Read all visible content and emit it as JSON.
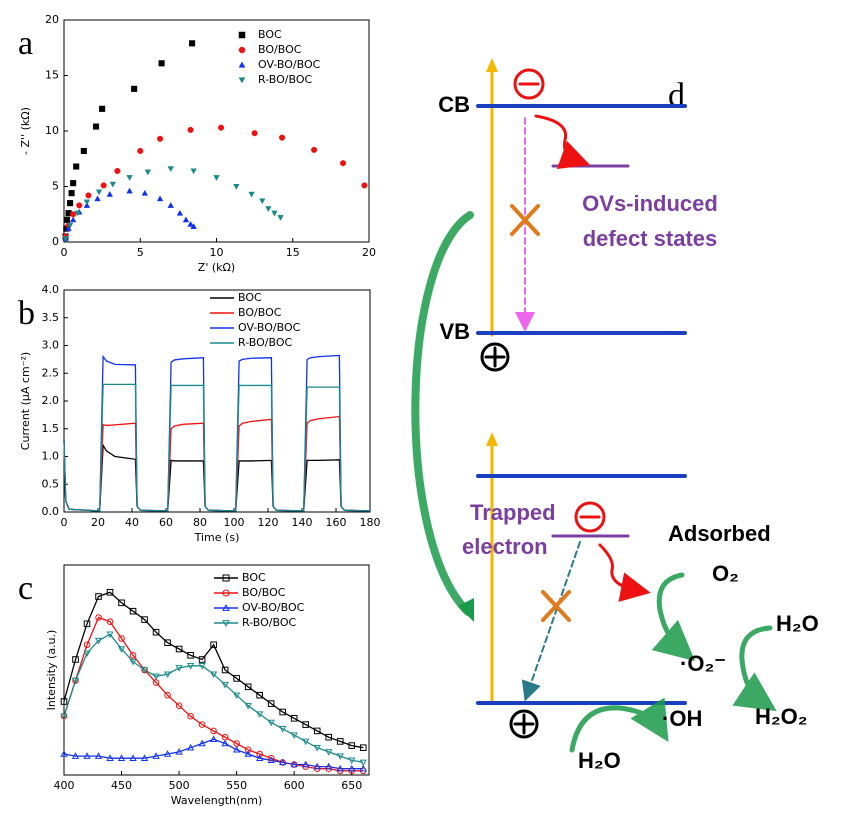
{
  "chart_data": [
    {
      "type": "scatter",
      "panel": "a",
      "x_label": "Z' (kΩ)",
      "y_label": "- Z'' (kΩ)",
      "xlim": [
        0,
        20
      ],
      "xticks": [
        0,
        5,
        10,
        15,
        20
      ],
      "ylim": [
        0,
        20
      ],
      "yticks": [
        0,
        5,
        10,
        15,
        20
      ],
      "series": [
        {
          "name": "BOC",
          "color": "#000000",
          "marker": "square",
          "x": [
            0.1,
            0.15,
            0.2,
            0.3,
            0.4,
            0.5,
            0.6,
            0.8,
            1.3,
            2.1,
            2.5,
            4.6,
            6.4,
            8.4
          ],
          "y": [
            0.5,
            1.2,
            2.0,
            2.6,
            3.5,
            4.4,
            5.3,
            6.8,
            8.2,
            10.4,
            12.0,
            13.8,
            16.1,
            17.9
          ]
        },
        {
          "name": "BO/BOC",
          "color": "#ee1111",
          "marker": "circle",
          "x": [
            0.1,
            0.3,
            0.6,
            1.0,
            1.6,
            2.6,
            3.5,
            5.0,
            6.3,
            8.3,
            10.3,
            12.5,
            14.3,
            16.4,
            18.3,
            19.7
          ],
          "y": [
            0.5,
            1.5,
            2.5,
            3.3,
            4.2,
            5.1,
            6.4,
            8.2,
            9.3,
            10.1,
            10.3,
            9.8,
            9.4,
            8.3,
            7.1,
            5.1
          ]
        },
        {
          "name": "OV-BO/BOC",
          "color": "#1133ee",
          "marker": "triangle",
          "x": [
            0.1,
            0.3,
            0.6,
            1.0,
            1.5,
            2.2,
            3.0,
            4.3,
            5.3,
            6.3,
            7.0,
            7.6,
            8.0,
            8.3,
            8.5
          ],
          "y": [
            0.3,
            1.2,
            2.0,
            2.7,
            3.3,
            3.9,
            4.3,
            4.6,
            4.4,
            3.9,
            3.3,
            2.6,
            2.0,
            1.6,
            1.4
          ]
        },
        {
          "name": "R-BO/BOC",
          "color": "#1a8a8a",
          "marker": "triangle-down",
          "x": [
            0.1,
            0.4,
            0.9,
            1.5,
            2.3,
            3.2,
            4.3,
            5.5,
            7.0,
            8.5,
            10.0,
            11.3,
            12.3,
            13.0,
            13.4,
            13.8,
            14.2
          ],
          "y": [
            0.3,
            1.5,
            2.6,
            3.6,
            4.5,
            5.2,
            5.8,
            6.3,
            6.6,
            6.4,
            5.8,
            5.0,
            4.3,
            3.7,
            3.0,
            2.6,
            2.2
          ]
        }
      ]
    },
    {
      "type": "line",
      "panel": "b",
      "x_label": "Time (s)",
      "y_label": "Current (μA cm⁻²)",
      "xlim": [
        0,
        180
      ],
      "xticks": [
        0,
        20,
        40,
        60,
        80,
        100,
        120,
        140,
        160,
        180
      ],
      "ylim": [
        0,
        4
      ],
      "yticks": [
        {
          "value": 0,
          "label": "0.0"
        },
        0.5,
        {
          "value": 1,
          "label": "1.0"
        },
        1.5,
        {
          "value": 2,
          "label": "2.0"
        },
        2.5,
        {
          "value": 3,
          "label": "3.0"
        },
        3.5,
        {
          "value": 4,
          "label": "4.0"
        }
      ],
      "x": [
        0,
        1,
        3,
        20,
        21,
        23,
        25,
        30,
        42,
        43,
        45,
        60,
        61,
        63,
        65,
        70,
        82,
        83,
        85,
        100,
        101,
        103,
        105,
        110,
        122,
        123,
        125,
        140,
        141,
        143,
        145,
        150,
        162,
        163,
        165,
        180
      ],
      "series": [
        {
          "name": "BOC",
          "color": "#000000",
          "values": [
            1.3,
            0.2,
            0.05,
            0.02,
            0.02,
            1.2,
            1.1,
            1.0,
            0.95,
            0.1,
            0.03,
            0.02,
            0.02,
            0.93,
            0.92,
            0.92,
            0.92,
            0.1,
            0.03,
            0.02,
            0.02,
            0.92,
            0.92,
            0.92,
            0.93,
            0.1,
            0.03,
            0.02,
            0.02,
            0.93,
            0.93,
            0.93,
            0.94,
            0.1,
            0.03,
            0.02
          ]
        },
        {
          "name": "BO/BOC",
          "color": "#ee1111",
          "values": [
            1.3,
            0.2,
            0.05,
            0.02,
            0.02,
            1.57,
            1.56,
            1.57,
            1.6,
            0.1,
            0.03,
            0.02,
            0.02,
            1.5,
            1.55,
            1.58,
            1.6,
            0.1,
            0.03,
            0.02,
            0.02,
            1.55,
            1.6,
            1.63,
            1.67,
            0.1,
            0.03,
            0.02,
            0.02,
            1.6,
            1.65,
            1.68,
            1.72,
            0.1,
            0.03,
            0.02
          ]
        },
        {
          "name": "OV-BO/BOC",
          "color": "#1133ee",
          "values": [
            1.3,
            0.2,
            0.05,
            0.02,
            0.02,
            2.8,
            2.72,
            2.66,
            2.65,
            0.1,
            0.03,
            0.02,
            0.02,
            2.7,
            2.74,
            2.76,
            2.78,
            0.1,
            0.03,
            0.02,
            0.02,
            2.72,
            2.75,
            2.77,
            2.78,
            0.1,
            0.03,
            0.02,
            0.02,
            2.75,
            2.78,
            2.8,
            2.82,
            0.1,
            0.03,
            0.02
          ]
        },
        {
          "name": "R-BO/BOC",
          "color": "#1a8a8a",
          "values": [
            1.3,
            0.2,
            0.05,
            0.02,
            0.02,
            2.3,
            2.3,
            2.3,
            2.3,
            0.1,
            0.03,
            0.02,
            0.02,
            2.28,
            2.28,
            2.28,
            2.28,
            0.1,
            0.03,
            0.02,
            0.02,
            2.28,
            2.28,
            2.28,
            2.28,
            0.1,
            0.03,
            0.02,
            0.02,
            2.25,
            2.25,
            2.25,
            2.25,
            0.1,
            0.03,
            0.02
          ]
        }
      ]
    },
    {
      "type": "line",
      "panel": "c",
      "x_label": "Wavelength(nm)",
      "y_label": "Intensity (a.u.)",
      "xlim": [
        400,
        665
      ],
      "xticks": [
        400,
        450,
        500,
        550,
        600,
        650
      ],
      "ylim": [
        0,
        100
      ],
      "x": [
        400,
        410,
        420,
        430,
        440,
        450,
        460,
        470,
        480,
        490,
        500,
        510,
        520,
        530,
        540,
        550,
        560,
        570,
        580,
        590,
        600,
        610,
        620,
        630,
        640,
        650,
        660
      ],
      "series": [
        {
          "name": "BOC",
          "color": "#000000",
          "marker": "square",
          "values": [
            35,
            55,
            72,
            85,
            87,
            82,
            78,
            74,
            68,
            63,
            60,
            57,
            55,
            62,
            50,
            46,
            42,
            38,
            34,
            30,
            27,
            24,
            21,
            18,
            16,
            14,
            13
          ]
        },
        {
          "name": "BO/BOC",
          "color": "#ee1111",
          "marker": "circle",
          "values": [
            28,
            45,
            62,
            75,
            73,
            65,
            57,
            50,
            44,
            38,
            33,
            28,
            24,
            21,
            18,
            15,
            12,
            10,
            8,
            6,
            5,
            4,
            3,
            3,
            2,
            2,
            2
          ]
        },
        {
          "name": "OV-BO/BOC",
          "color": "#1133ee",
          "marker": "triangle",
          "values": [
            10,
            9,
            9,
            9,
            8,
            8,
            8,
            8,
            9,
            10,
            11,
            13,
            15,
            17,
            15,
            12,
            10,
            8,
            7,
            6,
            5,
            5,
            4,
            4,
            3,
            3,
            3
          ]
        },
        {
          "name": "R-BO/BOC",
          "color": "#1a8a8a",
          "marker": "triangle-down",
          "values": [
            28,
            45,
            58,
            64,
            67,
            60,
            54,
            50,
            47,
            48,
            51,
            52,
            52,
            48,
            43,
            38,
            33,
            29,
            25,
            22,
            19,
            16,
            13,
            11,
            9,
            7,
            6
          ]
        }
      ]
    }
  ],
  "diagram": {
    "panel": "d",
    "cb": "CB",
    "vb": "VB",
    "defect": [
      "OVs-induced",
      "defect states"
    ],
    "trapped": [
      "Trapped",
      "electron"
    ],
    "adsorbed": "Adsorbed",
    "o2": "O₂",
    "superoxide": "·O₂⁻",
    "h2o_right": "H₂O",
    "h2o2": "H₂O₂",
    "hydroxyl": "·OH",
    "h2o_bottom": "H₂O"
  }
}
